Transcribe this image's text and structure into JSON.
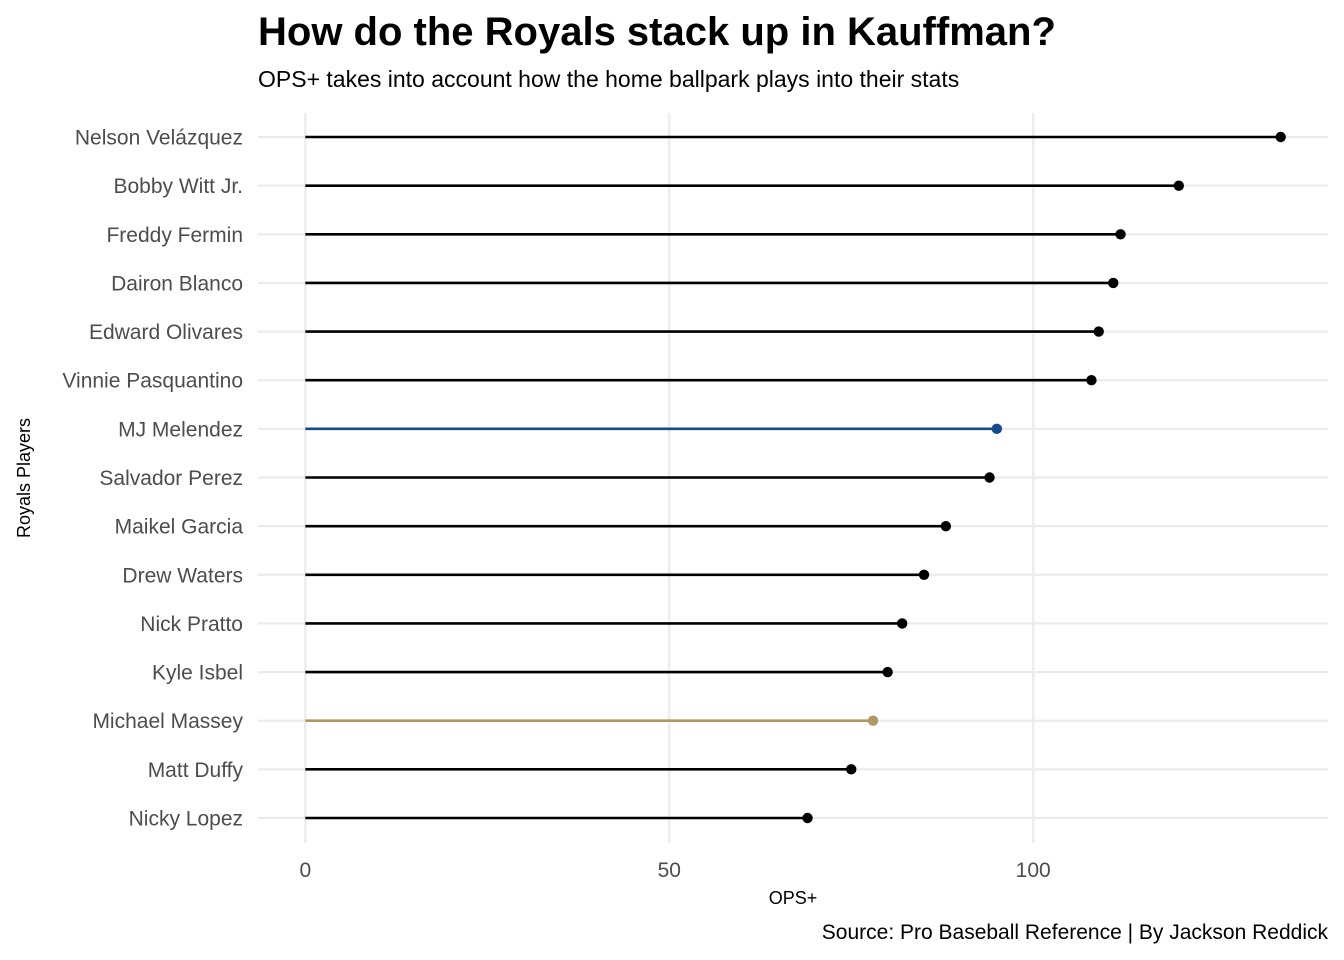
{
  "chart_data": {
    "type": "lollipop",
    "title": "How do the Royals stack up in Kauffman?",
    "subtitle": "OPS+ takes into account how the home ballpark plays into their stats",
    "caption": "Source: Pro Baseball Reference | By Jackson Reddick",
    "xlabel": "OPS+",
    "ylabel": "Royals Players",
    "xlim": [
      -6.5,
      140.5
    ],
    "x_ticks": [
      0,
      50,
      100
    ],
    "grid": true,
    "default_color": "#000000",
    "categories": [
      "Nelson Velázquez",
      "Bobby Witt Jr.",
      "Freddy Fermin",
      "Dairon Blanco",
      "Edward Olivares",
      "Vinnie Pasquantino",
      "MJ Melendez",
      "Salvador Perez",
      "Maikel Garcia",
      "Drew Waters",
      "Nick Pratto",
      "Kyle Isbel",
      "Michael Massey",
      "Matt Duffy",
      "Nicky Lopez"
    ],
    "values": [
      134,
      120,
      112,
      111,
      109,
      108,
      95,
      94,
      88,
      85,
      82,
      80,
      78,
      75,
      69
    ],
    "highlights": [
      {
        "category": "MJ Melendez",
        "color": "#174a8b"
      },
      {
        "category": "Michael Massey",
        "color": "#b09862"
      }
    ]
  }
}
